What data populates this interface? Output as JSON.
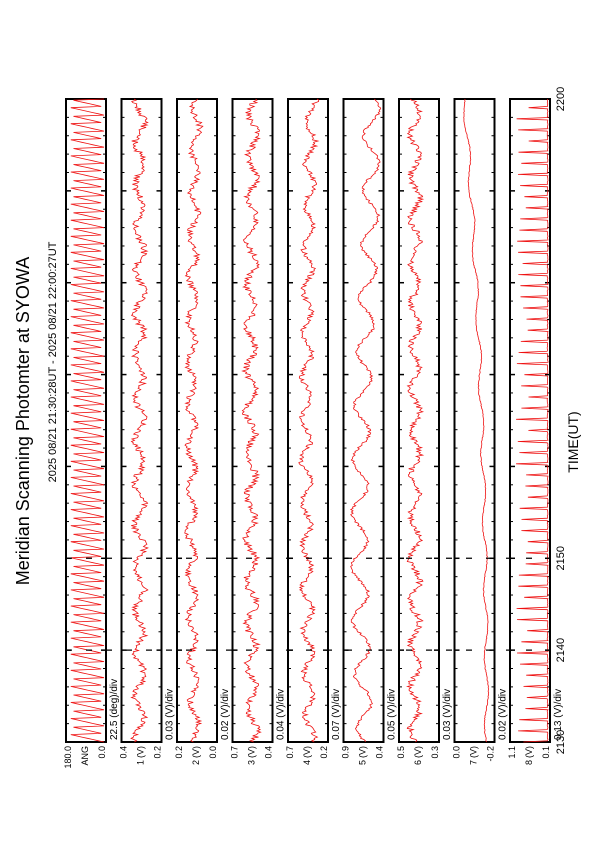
{
  "title": "Meridian Scanning Photomter at SYOWA",
  "time_range": "2025 08/21 21:30:28UT - 2025 08/21 22:00:27UT",
  "colors": {
    "trace": "#ee1111",
    "axes": "#000000",
    "background": "#ffffff"
  },
  "chart_data": {
    "type": "line",
    "orientation": "rotated-90-clockwise",
    "title": "Meridian Scanning Photomter at SYOWA",
    "subtitle": "2025 08/21 21:30:28UT - 2025 08/21 22:00:27UT",
    "xlabel": "TIME(UT)",
    "xlim": [
      2130,
      2200
    ],
    "xticks": [
      "2130",
      "2140",
      "2150",
      "2200"
    ],
    "panels": [
      {
        "scale": "22.5 (deg)/div",
        "unit": "",
        "yticks": [
          "180.0",
          "ANG",
          "0.0"
        ],
        "ylim": [
          0,
          180
        ],
        "pattern": "sawtooth",
        "base": 0.5,
        "amplitude": 0.45,
        "noise": 0.0,
        "trend": 0.0
      },
      {
        "scale": "0.03 (V)/div",
        "unit": "(V)",
        "yticks": [
          "0.4",
          "1",
          "0.2"
        ],
        "ylim": [
          0.2,
          0.4
        ],
        "pattern": "noisy",
        "base": 0.55,
        "amplitude": 0.12,
        "noise": 0.18,
        "trend": 0.0
      },
      {
        "scale": "0.02 (V)/div",
        "unit": "(V)",
        "yticks": [
          "0.2",
          "2",
          "0.0"
        ],
        "ylim": [
          0.0,
          0.2
        ],
        "pattern": "noisy",
        "base": 0.55,
        "amplitude": 0.1,
        "noise": 0.16,
        "trend": 0.1
      },
      {
        "scale": "0.04 (V)/div",
        "unit": "(V)",
        "yticks": [
          "0.7",
          "3",
          "0.4"
        ],
        "ylim": [
          0.4,
          0.7
        ],
        "pattern": "noisy",
        "base": 0.5,
        "amplitude": 0.12,
        "noise": 0.18,
        "trend": 0.05
      },
      {
        "scale": "0.07 (V)/div",
        "unit": "(V)",
        "yticks": [
          "0.7",
          "4",
          "0.2"
        ],
        "ylim": [
          0.2,
          0.7
        ],
        "pattern": "noisy",
        "base": 0.45,
        "amplitude": 0.12,
        "noise": 0.14,
        "trend": 0.1
      },
      {
        "scale": "0.05 (V)/div",
        "unit": "(V)",
        "yticks": [
          "0.9",
          "5",
          "0.4"
        ],
        "ylim": [
          0.4,
          0.9
        ],
        "pattern": "oscillating",
        "base": 0.45,
        "amplitude": 0.2,
        "noise": 0.08,
        "trend": 0.15
      },
      {
        "scale": "0.03 (V)/div",
        "unit": "(V)",
        "yticks": [
          "0.5",
          "6",
          "0.3"
        ],
        "ylim": [
          0.3,
          0.5
        ],
        "pattern": "noisy",
        "base": 0.6,
        "amplitude": 0.12,
        "noise": 0.16,
        "trend": 0.0
      },
      {
        "scale": "0.02 (V)/div",
        "unit": "(V)",
        "yticks": [
          "0.0",
          "7",
          "-0.2"
        ],
        "ylim": [
          -0.2,
          0.0
        ],
        "pattern": "smooth",
        "base": 0.2,
        "amplitude": 0.05,
        "noise": 0.02,
        "trend": 0.55
      },
      {
        "scale": "0.13 (V)/div",
        "unit": "(V)",
        "yticks": [
          "1.1",
          "8",
          "0.1"
        ],
        "ylim": [
          0.1,
          1.1
        ],
        "pattern": "spikes",
        "base": 0.05,
        "amplitude": 0.8,
        "noise": 0.02,
        "trend": 0.0
      }
    ]
  }
}
